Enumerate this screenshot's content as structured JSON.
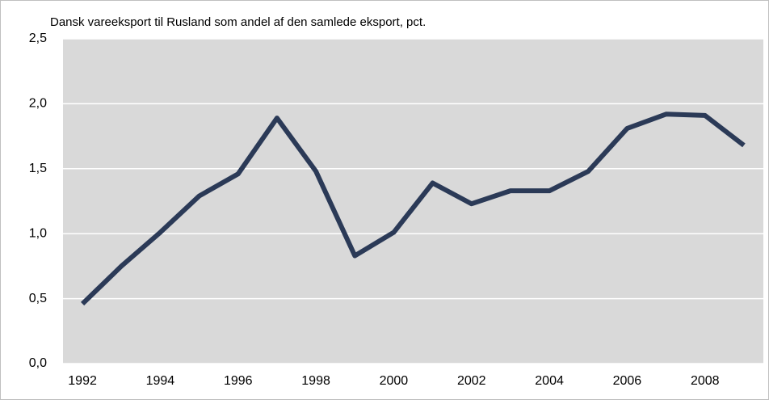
{
  "chart_data": {
    "type": "line",
    "title": "Dansk vareeksport til Rusland som andel af den samlede eksport, pct.",
    "x": [
      1992,
      1993,
      1994,
      1995,
      1996,
      1997,
      1998,
      1999,
      2000,
      2001,
      2002,
      2003,
      2004,
      2005,
      2006,
      2007,
      2008,
      2009
    ],
    "values": [
      0.46,
      0.75,
      1.01,
      1.29,
      1.46,
      1.89,
      1.48,
      0.83,
      1.01,
      1.39,
      1.23,
      1.33,
      1.33,
      1.48,
      1.81,
      1.92,
      1.91,
      1.68
    ],
    "color": "#2b3a57",
    "xlim": [
      1991.5,
      2009.5
    ],
    "xticks": [
      1992,
      1994,
      1996,
      1998,
      2000,
      2002,
      2004,
      2006,
      2008
    ],
    "ylim": [
      0,
      2.5
    ],
    "yticks": [
      {
        "value": 0,
        "label": "0,0"
      },
      {
        "value": 0.5,
        "label": "0,5"
      },
      {
        "value": 1,
        "label": "1,0"
      },
      {
        "value": 1.5,
        "label": "1,5"
      },
      {
        "value": 2,
        "label": "2,0"
      },
      {
        "value": 2.5,
        "label": "2,5"
      }
    ],
    "grid": true
  }
}
